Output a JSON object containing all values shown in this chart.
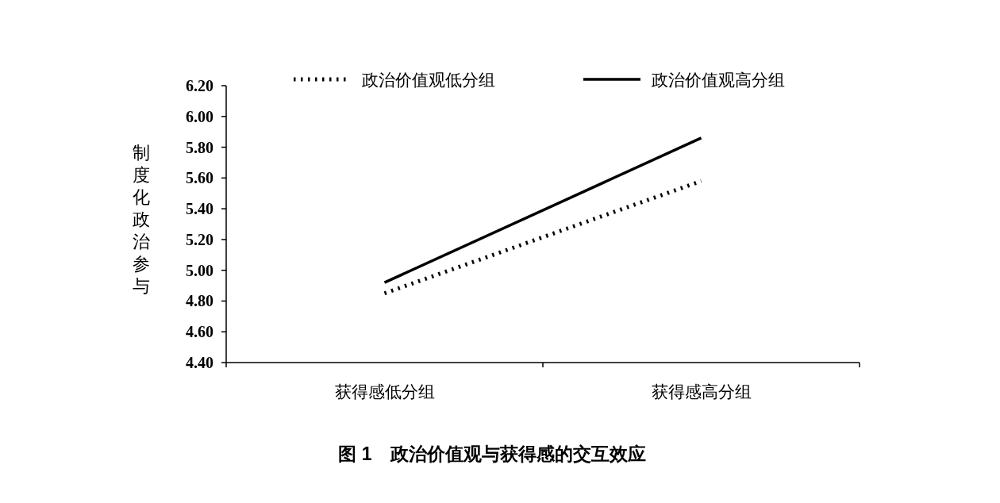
{
  "chart_data": {
    "type": "line",
    "title": "图 1　政治价值观与获得感的交互效应",
    "ylabel": "制度化政治参与",
    "categories": [
      "获得感低分组",
      "获得感高分组"
    ],
    "series": [
      {
        "name": "政治价值观低分组",
        "color": "#000000",
        "line_style": "dotted",
        "values": [
          4.85,
          5.58
        ]
      },
      {
        "name": "政治价值观高分组",
        "color": "#000000",
        "line_style": "solid",
        "values": [
          4.92,
          5.86
        ]
      }
    ],
    "ylim": [
      4.4,
      6.2
    ],
    "yticks": [
      {
        "value": 4.4,
        "label": "4.40"
      },
      {
        "value": 4.6,
        "label": "4.60"
      },
      {
        "value": 4.8,
        "label": "4.80"
      },
      {
        "value": 5.0,
        "label": "5.00"
      },
      {
        "value": 5.2,
        "label": "5.20"
      },
      {
        "value": 5.4,
        "label": "5.40"
      },
      {
        "value": 5.6,
        "label": "5.60"
      },
      {
        "value": 5.8,
        "label": "5.80"
      },
      {
        "value": 6.0,
        "label": "6.00"
      },
      {
        "value": 6.2,
        "label": "6.20"
      }
    ],
    "legend": "top"
  }
}
